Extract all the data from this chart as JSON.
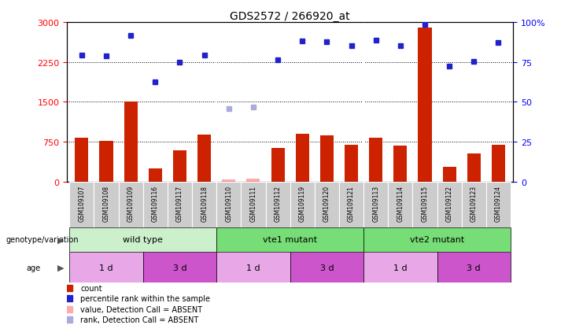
{
  "title": "GDS2572 / 266920_at",
  "samples": [
    "GSM109107",
    "GSM109108",
    "GSM109109",
    "GSM109116",
    "GSM109117",
    "GSM109118",
    "GSM109110",
    "GSM109111",
    "GSM109112",
    "GSM109119",
    "GSM109120",
    "GSM109121",
    "GSM109113",
    "GSM109114",
    "GSM109115",
    "GSM109122",
    "GSM109123",
    "GSM109124"
  ],
  "count_values": [
    820,
    760,
    1500,
    250,
    590,
    880,
    40,
    50,
    630,
    900,
    870,
    700,
    830,
    680,
    2900,
    280,
    530,
    700
  ],
  "count_absent": [
    false,
    false,
    false,
    false,
    false,
    false,
    true,
    true,
    false,
    false,
    false,
    false,
    false,
    false,
    false,
    false,
    false,
    false
  ],
  "rank_values": [
    79.3,
    78.7,
    91.7,
    62.3,
    74.7,
    79.3,
    45.7,
    46.7,
    76.3,
    88.0,
    87.7,
    85.3,
    88.7,
    85.3,
    98.3,
    72.3,
    75.3,
    87.3
  ],
  "rank_absent": [
    false,
    false,
    false,
    false,
    false,
    false,
    true,
    true,
    false,
    false,
    false,
    false,
    false,
    false,
    false,
    false,
    false,
    false
  ],
  "count_ylim": [
    0,
    3000
  ],
  "rank_ylim": [
    0,
    100
  ],
  "count_ticks": [
    0,
    750,
    1500,
    2250,
    3000
  ],
  "rank_ticks": [
    0,
    25,
    50,
    75,
    100
  ],
  "genotype_groups": [
    {
      "label": "wild type",
      "start": 0,
      "end": 6,
      "color": "#b8f0b8"
    },
    {
      "label": "vte1 mutant",
      "start": 6,
      "end": 12,
      "color": "#66dd66"
    },
    {
      "label": "vte2 mutant",
      "start": 12,
      "end": 18,
      "color": "#66dd66"
    }
  ],
  "age_groups": [
    {
      "label": "1 d",
      "start": 0,
      "end": 3,
      "color": "#e8a8e8"
    },
    {
      "label": "3 d",
      "start": 3,
      "end": 6,
      "color": "#cc55cc"
    },
    {
      "label": "1 d",
      "start": 6,
      "end": 9,
      "color": "#e8a8e8"
    },
    {
      "label": "3 d",
      "start": 9,
      "end": 12,
      "color": "#cc55cc"
    },
    {
      "label": "1 d",
      "start": 12,
      "end": 15,
      "color": "#e8a8e8"
    },
    {
      "label": "3 d",
      "start": 15,
      "end": 18,
      "color": "#cc55cc"
    }
  ],
  "bar_color": "#cc2200",
  "bar_absent_color": "#ffaaaa",
  "dot_color": "#2222cc",
  "dot_absent_color": "#aaaadd",
  "xtick_bg": "#cccccc",
  "genotype_label": "genotype/variation",
  "age_label": "age",
  "legend_items": [
    {
      "label": "count",
      "color": "#cc2200"
    },
    {
      "label": "percentile rank within the sample",
      "color": "#2222cc"
    },
    {
      "label": "value, Detection Call = ABSENT",
      "color": "#ffaaaa"
    },
    {
      "label": "rank, Detection Call = ABSENT",
      "color": "#aaaadd"
    }
  ]
}
